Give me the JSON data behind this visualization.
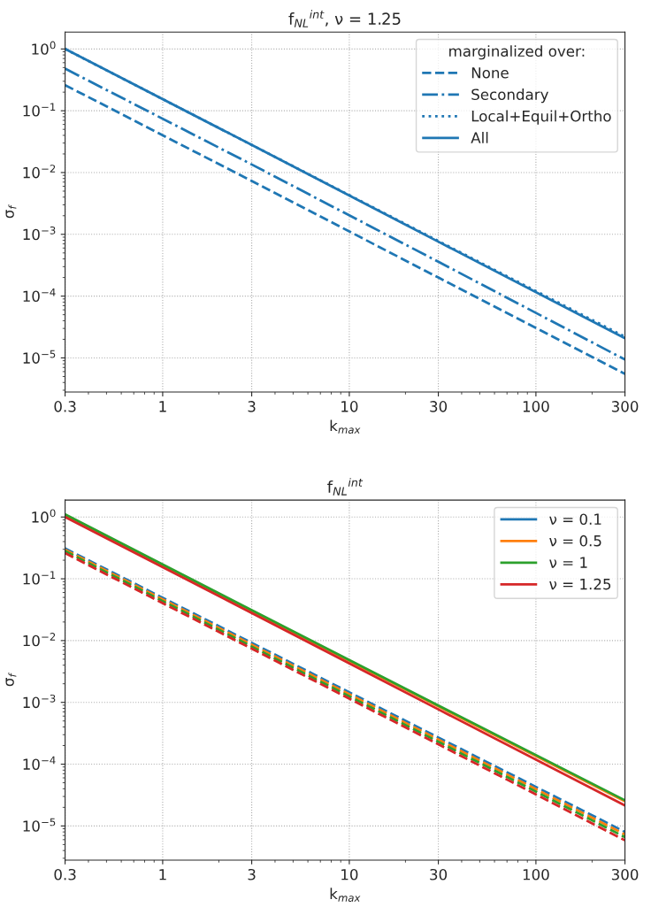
{
  "chart_data": [
    {
      "type": "line",
      "title": "f$_{NL}$$^{int}$, ν = 1.25",
      "xlabel": "k$_{max}$",
      "ylabel": "σ$_{f}$",
      "log": "xy",
      "grid": true,
      "legend": "top right",
      "legend_title": "marginalized over:",
      "xlim": [
        0.3,
        300
      ],
      "ylim": [
        2.8e-06,
        1.88
      ],
      "xticks": [
        0.3,
        1,
        3,
        10,
        30,
        100,
        300
      ],
      "yticks": [
        {
          "value": 1e-05,
          "label": "10$^{−5}$"
        },
        {
          "value": 0.0001,
          "label": "10$^{−4}$"
        },
        {
          "value": 0.001,
          "label": "10$^{−3}$"
        },
        {
          "value": 0.01,
          "label": "10$^{−2}$"
        },
        {
          "value": 0.1,
          "label": "10$^{−1}$"
        },
        {
          "value": 1,
          "label": "10$^{0}$"
        }
      ],
      "series": [
        {
          "name": "None",
          "color": "#1f77b4",
          "line_style": "dashed",
          "x": [
            0.3,
            3,
            30,
            300
          ],
          "values": [
            0.26,
            0.0073,
            0.0002,
            5.5e-06
          ]
        },
        {
          "name": "Secondary",
          "color": "#1f77b4",
          "line_style": "dashdot",
          "x": [
            0.3,
            3,
            30,
            300
          ],
          "values": [
            0.48,
            0.0135,
            0.00036,
            9.4e-06
          ]
        },
        {
          "name": "Local+Equil+Ortho",
          "color": "#1f77b4",
          "line_style": "dotted",
          "x": [
            0.3,
            3,
            30,
            300
          ],
          "values": [
            1.0,
            0.028,
            0.00078,
            2.2e-05
          ]
        },
        {
          "name": "All",
          "color": "#1f77b4",
          "line_style": "solid",
          "x": [
            0.3,
            3,
            30,
            300
          ],
          "values": [
            1.0,
            0.028,
            0.00076,
            2.08e-05
          ]
        }
      ]
    },
    {
      "type": "line",
      "title": "f$_{NL}$$^{int}$",
      "xlabel": "k$_{max}$",
      "ylabel": "σ$_{f}$",
      "log": "xy",
      "grid": true,
      "legend": "top right",
      "xlim": [
        0.3,
        300
      ],
      "ylim": [
        2.8e-06,
        1.88
      ],
      "xticks": [
        0.3,
        1,
        3,
        10,
        30,
        100,
        300
      ],
      "yticks": [
        {
          "value": 1e-05,
          "label": "10$^{−5}$"
        },
        {
          "value": 0.0001,
          "label": "10$^{−4}$"
        },
        {
          "value": 0.001,
          "label": "10$^{−3}$"
        },
        {
          "value": 0.01,
          "label": "10$^{−2}$"
        },
        {
          "value": 0.1,
          "label": "10$^{−1}$"
        },
        {
          "value": 1,
          "label": "10$^{0}$"
        }
      ],
      "series": [
        {
          "name": "ν = 0.1",
          "color": "#1f77b4",
          "line_style": "solid",
          "values": [
            null
          ]
        },
        {
          "name": "ν = 0.5",
          "color": "#ff7f0e",
          "line_style": "solid",
          "x": [
            0.3,
            3,
            30,
            300
          ],
          "values": [
            1.08,
            0.03,
            0.00086,
            2.5e-05
          ]
        },
        {
          "name": "ν = 1",
          "color": "#2ca02c",
          "line_style": "solid",
          "x": [
            0.3,
            3,
            30,
            300
          ],
          "values": [
            1.1,
            0.031,
            0.00089,
            2.6e-05
          ]
        },
        {
          "name": "ν = 1.25",
          "color": "#d62728",
          "line_style": "solid",
          "x": [
            0.3,
            3,
            30,
            300
          ],
          "values": [
            1.0,
            0.028,
            0.00077,
            2.14e-05
          ]
        },
        {
          "color": "#1f77b4",
          "line_style": "dashed",
          "x": [
            0.3,
            3,
            30,
            300
          ],
          "values": [
            0.31,
            0.0092,
            0.00027,
            8e-06
          ]
        },
        {
          "color": "#ff7f0e",
          "line_style": "dashed",
          "x": [
            0.3,
            3,
            30,
            300
          ],
          "values": [
            0.295,
            0.0086,
            0.00025,
            7.3e-06
          ]
        },
        {
          "color": "#2ca02c",
          "line_style": "dashed",
          "x": [
            0.3,
            3,
            30,
            300
          ],
          "values": [
            0.28,
            0.008,
            0.00023,
            6.6e-06
          ]
        },
        {
          "color": "#d62728",
          "line_style": "dashed",
          "x": [
            0.3,
            3,
            30,
            300
          ],
          "values": [
            0.26,
            0.0074,
            0.00021,
            5.85e-06
          ]
        }
      ]
    }
  ]
}
